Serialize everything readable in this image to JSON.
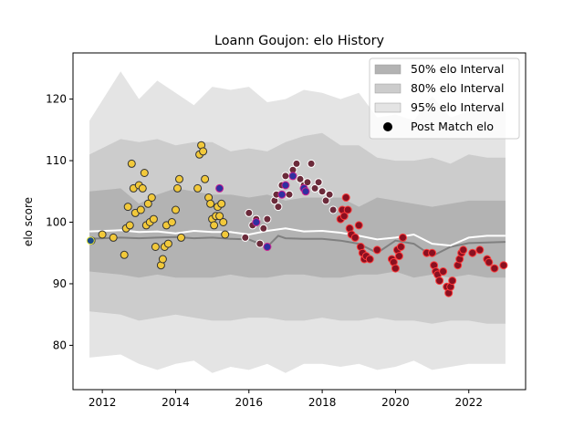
{
  "chart_data": {
    "type": "scatter",
    "title": "Loann Goujon: elo History",
    "xlabel": "",
    "ylabel": "elo score",
    "xlim": [
      2011.2,
      2023.55
    ],
    "ylim": [
      72.8,
      127.5
    ],
    "xticks": [
      2012,
      2014,
      2016,
      2018,
      2020,
      2022
    ],
    "yticks": [
      80,
      90,
      100,
      110,
      120
    ],
    "grid": false,
    "legend_position": "top-right",
    "legend": [
      {
        "label": "50% elo Interval",
        "kind": "band",
        "color": "#b3b3b3"
      },
      {
        "label": "80% elo Interval",
        "kind": "band",
        "color": "#cccccc"
      },
      {
        "label": "95% elo Interval",
        "kind": "band",
        "color": "#e4e4e4"
      },
      {
        "label": "Post Match elo",
        "kind": "marker",
        "color": "#000000"
      }
    ],
    "bands": {
      "x": [
        2011.65,
        2012.5,
        2013.0,
        2013.5,
        2014.0,
        2014.5,
        2015.0,
        2015.5,
        2016.0,
        2016.5,
        2017.0,
        2017.5,
        2018.0,
        2018.5,
        2019.0,
        2019.5,
        2020.0,
        2020.5,
        2021.0,
        2021.5,
        2022.0,
        2022.5,
        2023.0
      ],
      "p95_hi": [
        116.5,
        124.5,
        120.0,
        123.0,
        121.0,
        119.0,
        122.0,
        121.5,
        122.0,
        119.5,
        120.0,
        121.5,
        121.0,
        120.0,
        121.0,
        117.0,
        117.5,
        116.5,
        120.5,
        117.0,
        118.0,
        118.5,
        118.5
      ],
      "p80_hi": [
        111.0,
        113.5,
        113.0,
        113.5,
        112.5,
        113.0,
        113.0,
        111.5,
        112.0,
        111.5,
        113.0,
        114.0,
        114.5,
        112.5,
        112.5,
        110.5,
        110.0,
        110.0,
        110.5,
        109.5,
        111.0,
        110.5,
        110.5
      ],
      "p50_hi": [
        105.0,
        105.5,
        103.0,
        104.5,
        105.5,
        105.0,
        104.5,
        104.5,
        104.0,
        104.5,
        103.5,
        104.0,
        104.0,
        104.0,
        102.5,
        104.0,
        103.5,
        103.0,
        102.5,
        103.0,
        103.5,
        103.5,
        103.5
      ],
      "p50_lo": [
        92.0,
        91.5,
        91.0,
        91.5,
        91.0,
        91.0,
        91.0,
        91.5,
        91.0,
        91.0,
        91.5,
        91.5,
        91.0,
        91.0,
        91.5,
        91.5,
        92.0,
        91.0,
        91.5,
        91.0,
        91.5,
        91.0,
        91.0
      ],
      "p80_lo": [
        85.5,
        85.0,
        84.0,
        84.5,
        85.0,
        84.5,
        84.0,
        84.0,
        84.5,
        84.5,
        84.0,
        84.0,
        84.5,
        84.0,
        84.0,
        84.5,
        84.0,
        84.0,
        83.5,
        84.0,
        84.0,
        83.5,
        83.5
      ],
      "p95_lo": [
        78.0,
        78.5,
        77.0,
        76.0,
        77.0,
        77.5,
        75.5,
        76.5,
        76.0,
        77.0,
        75.5,
        77.0,
        77.0,
        76.5,
        77.0,
        76.0,
        76.5,
        77.5,
        76.0,
        76.5,
        77.0,
        77.0,
        77.0
      ]
    },
    "median_line": {
      "color": "#808080",
      "x": [
        2011.65,
        2012.5,
        2013.0,
        2013.5,
        2014.0,
        2014.5,
        2015.0,
        2015.5,
        2016.0,
        2016.5,
        2016.8,
        2017.0,
        2017.5,
        2018.0,
        2018.5,
        2019.0,
        2019.5,
        2020.0,
        2020.5,
        2021.0,
        2021.5,
        2022.0,
        2022.5,
        2023.0
      ],
      "y": [
        97.3,
        97.5,
        97.4,
        97.5,
        97.6,
        97.4,
        97.5,
        97.3,
        97.2,
        96.0,
        97.8,
        97.4,
        97.3,
        97.3,
        97.0,
        96.5,
        95.0,
        97.0,
        96.5,
        94.5,
        96.0,
        96.6,
        96.7,
        96.8
      ]
    },
    "mean_line": {
      "color": "#ffffff",
      "x": [
        2011.65,
        2012.5,
        2013.0,
        2013.5,
        2014.0,
        2014.5,
        2015.0,
        2015.5,
        2016.0,
        2016.5,
        2017.0,
        2017.5,
        2018.0,
        2018.5,
        2019.0,
        2019.5,
        2020.0,
        2020.5,
        2021.0,
        2021.5,
        2022.0,
        2022.5,
        2023.0
      ],
      "y": [
        98.5,
        98.7,
        98.4,
        98.5,
        98.2,
        98.6,
        98.4,
        98.4,
        98.0,
        98.6,
        99.0,
        98.5,
        98.6,
        98.3,
        97.8,
        97.2,
        97.5,
        98.0,
        96.5,
        96.2,
        97.5,
        97.8,
        97.8
      ]
    },
    "series": [
      {
        "name": "Post Match elo",
        "fill": "#f2c93a",
        "stroke": "#333333",
        "x": [
          2011.7,
          2012.0,
          2012.3,
          2012.6,
          2012.65,
          2012.7,
          2012.75,
          2012.8,
          2012.85,
          2012.9,
          2013.0,
          2013.05,
          2013.1,
          2013.15,
          2013.2,
          2013.25,
          2013.3,
          2013.35,
          2013.4,
          2013.45,
          2013.6,
          2013.65,
          2013.7,
          2013.75,
          2013.8,
          2013.9,
          2014.0,
          2014.05,
          2014.1,
          2014.15,
          2014.6,
          2014.65,
          2014.7,
          2014.75,
          2014.8,
          2014.9,
          2014.95,
          2015.0,
          2015.05,
          2015.1,
          2015.15,
          2015.2,
          2015.25,
          2015.3,
          2015.35
        ],
        "y": [
          97.0,
          98.0,
          97.5,
          94.7,
          99.0,
          102.5,
          99.5,
          109.5,
          105.5,
          101.5,
          106.0,
          102.0,
          105.5,
          108.0,
          99.5,
          103.0,
          100.0,
          104.0,
          100.5,
          96.0,
          93.0,
          94.0,
          96.0,
          99.5,
          96.5,
          100.0,
          102.0,
          105.5,
          107.0,
          97.5,
          105.5,
          111.0,
          112.5,
          111.5,
          107.0,
          104.0,
          103.0,
          100.5,
          99.5,
          101.0,
          102.5,
          101.0,
          103.0,
          100.0,
          98.0
        ]
      },
      {
        "name": "",
        "fill": "#6b2a3a",
        "stroke": "#ffffff",
        "x": [
          2015.9,
          2016.0,
          2016.1,
          2016.2,
          2016.3,
          2016.4,
          2016.5,
          2016.7,
          2016.75,
          2016.8,
          2016.9,
          2017.0,
          2017.1,
          2017.2,
          2017.3,
          2017.4,
          2017.5,
          2017.6,
          2017.7,
          2017.8,
          2017.9,
          2018.0,
          2018.1,
          2018.2,
          2018.3
        ],
        "y": [
          97.5,
          101.5,
          99.5,
          100.5,
          96.5,
          99.0,
          100.5,
          103.5,
          104.5,
          102.5,
          106.0,
          107.5,
          104.5,
          108.5,
          109.5,
          107.0,
          106.0,
          106.5,
          109.5,
          105.5,
          106.5,
          105.0,
          103.5,
          104.5,
          102.0
        ]
      },
      {
        "name": "",
        "fill": "#8a1020",
        "stroke": "#ff3b3b",
        "x": [
          2018.5,
          2018.55,
          2018.6,
          2018.65,
          2018.7,
          2018.75,
          2018.8,
          2018.9,
          2019.0,
          2019.05,
          2019.1,
          2019.15,
          2019.2,
          2019.3,
          2019.5,
          2019.9,
          2019.95,
          2020.0,
          2020.05,
          2020.1,
          2020.15,
          2020.2,
          2020.85,
          2021.0,
          2021.05,
          2021.1,
          2021.15,
          2021.2,
          2021.3,
          2021.4,
          2021.45,
          2021.5,
          2021.55,
          2021.7,
          2021.75,
          2021.8,
          2021.85,
          2022.1,
          2022.3,
          2022.5,
          2022.55,
          2022.7,
          2022.95
        ],
        "y": [
          100.5,
          102.0,
          101.0,
          104.0,
          102.0,
          99.0,
          98.0,
          97.5,
          99.5,
          96.0,
          95.0,
          94.0,
          94.5,
          94.0,
          95.5,
          94.0,
          93.5,
          92.5,
          95.5,
          94.5,
          96.0,
          97.5,
          95.0,
          95.0,
          93.0,
          92.0,
          91.5,
          90.5,
          92.0,
          89.5,
          88.5,
          89.5,
          90.5,
          93.0,
          94.0,
          95.0,
          95.5,
          95.0,
          95.5,
          94.0,
          93.5,
          92.5,
          93.0
        ]
      },
      {
        "name": "",
        "fill": "#3030a0",
        "stroke": "#cc2090",
        "x": [
          2015.2,
          2016.2,
          2016.5,
          2016.9,
          2017.0,
          2017.2,
          2017.5,
          2017.55
        ],
        "y": [
          105.5,
          100.0,
          96.0,
          104.5,
          106.0,
          107.5,
          105.5,
          105.0
        ]
      },
      {
        "name": "",
        "fill": "#1a4a8a",
        "stroke": "#e8e840",
        "x": [
          2011.68
        ],
        "y": [
          97.0
        ]
      }
    ]
  }
}
